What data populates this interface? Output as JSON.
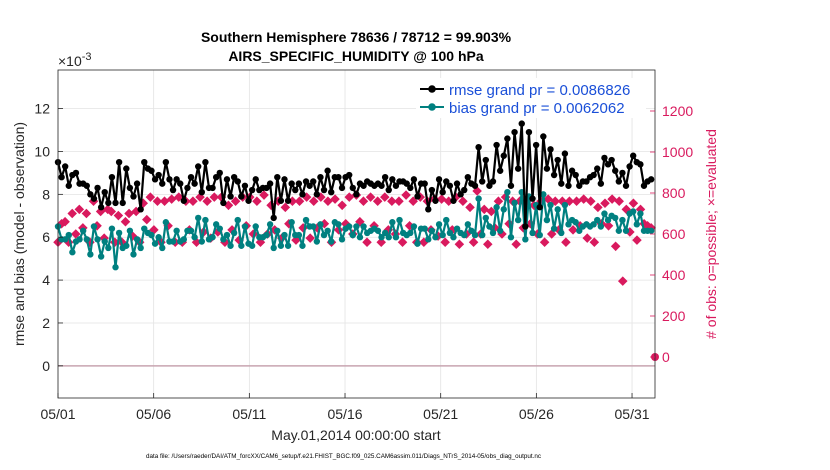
{
  "chart_data": {
    "type": "line",
    "title": "Southern Hemisphere 78636 / 78712 = 99.903%",
    "subtitle": "AIRS_SPECIFIC_HUMIDITY @ 100 hPa",
    "xlabel": "May.01,2014 00:00:00 start",
    "ylabel": "rmse and bias (model - observation)",
    "ylabel_right": "# of obs: o=possible; ×=evaluated",
    "exponent_label": "×10",
    "exponent_power": "-3",
    "footer": "data file: /Users/raeder/DAI/ATM_forcXX/CAM6_setup/f.e21.FHIST_BGC.f09_025.CAM6assim.011/Diags_NTrS_2014-05/obs_diag_output.nc",
    "xlim": [
      1,
      32.2
    ],
    "ylim": [
      -1.5,
      13.8
    ],
    "ylim_right": [
      -200,
      1400
    ],
    "x_tick_labels": [
      {
        "x": 1,
        "label": "05/01"
      },
      {
        "x": 6,
        "label": "05/06"
      },
      {
        "x": 11,
        "label": "05/11"
      },
      {
        "x": 16,
        "label": "05/16"
      },
      {
        "x": 21,
        "label": "05/21"
      },
      {
        "x": 26,
        "label": "05/26"
      },
      {
        "x": 31,
        "label": "05/31"
      }
    ],
    "y_ticks": [
      0,
      2,
      4,
      6,
      8,
      10,
      12
    ],
    "y_ticks_right": [
      0,
      200,
      400,
      600,
      800,
      1000,
      1200
    ],
    "grid": true,
    "legend_position": "top-right",
    "series": [
      {
        "name": "rmse grand pr = 0.0086826",
        "color": "#000000",
        "axis": "left",
        "values": [
          9.5,
          8.8,
          9.3,
          8.4,
          8.9,
          9.0,
          8.5,
          8.5,
          8.4,
          8.0,
          7.8,
          8.3,
          7.4,
          8.1,
          7.6,
          8.8,
          7.6,
          9.5,
          7.6,
          9.2,
          8.3,
          7.9,
          8.5,
          7.3,
          9.5,
          9.2,
          9.1,
          8.7,
          8.9,
          8.5,
          9.5,
          8.7,
          8.2,
          8.7,
          8.5,
          7.7,
          8.3,
          8.8,
          8.5,
          9.3,
          8.1,
          9.5,
          8.3,
          8.3,
          8.8,
          9.0,
          7.6,
          8.7,
          7.9,
          8.8,
          8.6,
          7.9,
          8.4,
          7.7,
          8.2,
          8.7,
          8.2,
          8.3,
          8.3,
          8.5,
          6.9,
          8.8,
          7.7,
          8.7,
          7.7,
          8.5,
          8.2,
          8.5,
          8.0,
          8.6,
          8.4,
          8.6,
          8.0,
          8.8,
          8.2,
          9.1,
          8.1,
          8.8,
          8.8,
          8.3,
          8.8,
          8.9,
          8.3,
          8.0,
          8.5,
          8.4,
          8.6,
          8.5,
          8.4,
          8.5,
          8.4,
          8.8,
          8.2,
          8.7,
          8.4,
          8.6,
          8.6,
          8.5,
          8.3,
          8.7,
          7.9,
          8.5,
          8.5,
          7.3,
          8.2,
          7.7,
          8.7,
          8.1,
          8.6,
          8.4,
          7.7,
          8.5,
          8.0,
          8.2,
          8.8,
          8.5,
          8.4,
          10.2,
          8.6,
          9.6,
          8.4,
          8.6,
          10.3,
          9.1,
          9.8,
          10.6,
          8.4,
          10.9,
          9.2,
          11.3,
          6.5,
          10.9,
          7.8,
          10.3,
          7.4,
          10.7,
          9.2,
          10.1,
          8.9,
          9.6,
          8.5,
          9.9,
          8.4,
          9.1,
          8.9,
          8.4,
          8.6,
          8.6,
          8.8,
          8.9,
          9.2,
          8.5,
          9.7,
          9.4,
          9.6,
          9.1,
          8.6,
          9.0,
          8.4,
          9.3,
          9.8,
          9.5,
          9.4,
          8.4,
          8.6,
          8.7
        ]
      },
      {
        "name": "bias grand pr = 0.0062062",
        "color": "#008080",
        "axis": "left",
        "values": [
          6.5,
          5.9,
          5.9,
          6.1,
          5.3,
          5.8,
          5.9,
          6.3,
          5.9,
          5.2,
          6.5,
          5.9,
          5.1,
          5.8,
          5.5,
          6.4,
          4.6,
          6.2,
          5.5,
          5.6,
          6.3,
          5.2,
          5.9,
          5.5,
          6.4,
          6.2,
          6.1,
          5.7,
          6.0,
          5.5,
          6.7,
          5.8,
          5.8,
          6.3,
          5.8,
          5.9,
          6.3,
          6.3,
          6.0,
          6.9,
          5.8,
          6.8,
          5.9,
          6.0,
          6.6,
          6.4,
          5.9,
          6.1,
          5.6,
          6.2,
          6.8,
          5.6,
          6.5,
          5.7,
          5.6,
          6.5,
          6.0,
          6.0,
          6.1,
          6.6,
          5.5,
          6.3,
          5.6,
          6.1,
          5.6,
          6.7,
          6.1,
          6.1,
          5.6,
          6.8,
          6.5,
          6.5,
          5.8,
          6.6,
          6.1,
          6.3,
          5.8,
          6.7,
          6.6,
          5.9,
          6.4,
          6.5,
          6.1,
          6.5,
          6.0,
          6.5,
          6.2,
          6.3,
          6.4,
          6.3,
          6.0,
          6.2,
          6.0,
          6.7,
          6.0,
          6.8,
          6.2,
          6.1,
          6.2,
          6.5,
          5.7,
          6.4,
          6.4,
          5.9,
          6.3,
          6.0,
          6.6,
          6.1,
          6.8,
          6.2,
          6.0,
          6.4,
          6.2,
          6.1,
          6.6,
          6.3,
          6.1,
          7.8,
          6.1,
          6.9,
          6.5,
          6.2,
          7.4,
          6.3,
          7.3,
          8.1,
          6.0,
          7.6,
          6.8,
          8.1,
          5.9,
          7.9,
          6.2,
          7.5,
          6.1,
          8.0,
          6.8,
          7.5,
          6.4,
          7.3,
          6.2,
          7.5,
          6.6,
          6.8,
          6.7,
          6.3,
          6.5,
          6.6,
          6.5,
          6.6,
          6.8,
          6.5,
          7.1,
          6.8,
          7.0,
          6.9,
          6.3,
          6.8,
          6.3,
          7.1,
          7.2,
          6.6,
          7.1,
          6.3,
          6.3,
          6.3
        ]
      },
      {
        "name": "# of obs possible",
        "color": "#d91a5e",
        "axis": "right",
        "values": [
          560,
          650,
          660,
          560,
          700,
          600,
          720,
          630,
          700,
          560,
          760,
          640,
          710,
          580,
          720,
          710,
          560,
          690,
          560,
          660,
          700,
          590,
          710,
          560,
          750,
          670,
          780,
          620,
          760,
          560,
          760,
          640,
          770,
          560,
          780,
          560,
          760,
          620,
          760,
          560,
          780,
          610,
          760,
          580,
          780,
          610,
          780,
          560,
          740,
          620,
          760,
          570,
          780,
          640,
          780,
          600,
          760,
          560,
          790,
          600,
          740,
          620,
          760,
          580,
          730,
          650,
          760,
          570,
          760,
          630,
          780,
          580,
          760,
          630,
          780,
          650,
          760,
          560,
          770,
          620,
          740,
          650,
          780,
          600,
          790,
          660,
          760,
          560,
          780,
          640,
          760,
          560,
          780,
          620,
          760,
          600,
          760,
          560,
          790,
          640,
          760,
          560,
          780,
          560,
          760,
          620,
          770,
          590,
          770,
          560,
          760,
          620,
          780,
          550,
          760,
          600,
          730,
          560,
          810,
          600,
          720,
          550,
          710,
          630,
          760,
          600,
          780,
          650,
          760,
          550,
          760,
          630,
          760,
          650,
          740,
          600,
          760,
          560,
          770,
          600,
          760,
          620,
          760,
          560,
          760,
          620,
          760,
          640,
          770,
          580,
          760,
          560,
          730,
          650,
          750,
          640,
          770,
          540,
          760,
          370,
          720,
          610,
          750,
          570,
          720,
          650,
          640,
          630
        ]
      },
      {
        "name": "# of obs evaluated",
        "color": "#d91a5e",
        "axis": "right",
        "values": [
          0
        ]
      }
    ]
  }
}
